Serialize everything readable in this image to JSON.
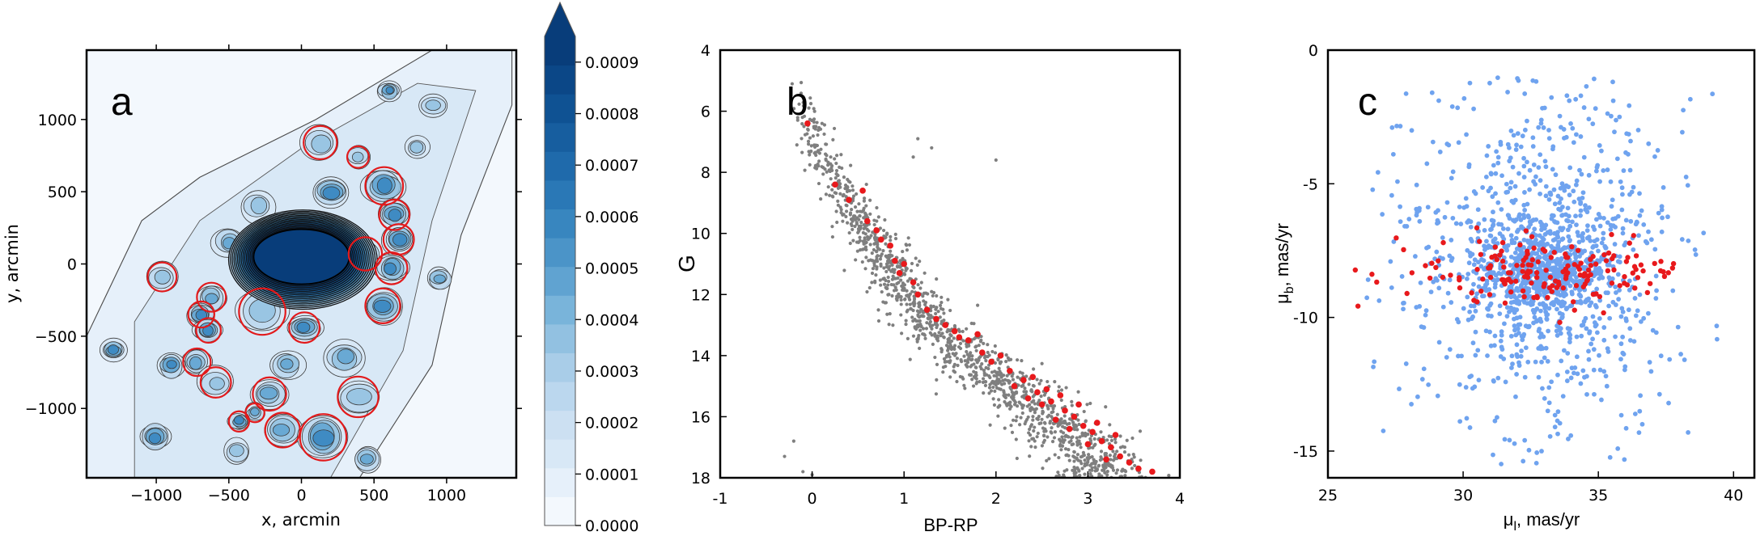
{
  "chart_data": [
    {
      "type": "heatmap",
      "panel_label": "a",
      "xlabel": "x, arcmin",
      "ylabel": "y, arcmin",
      "xticks": [
        -1000,
        -500,
        0,
        500,
        1000
      ],
      "xtick_labels": [
        "−1000",
        "−500",
        "0",
        "500",
        "1000"
      ],
      "yticks": [
        1000,
        500,
        0,
        -500,
        -1000
      ],
      "ytick_labels": [
        "1000",
        "500",
        "0",
        "−500",
        "−1000"
      ],
      "xlim": [
        -1480,
        1480
      ],
      "ylim": [
        -1480,
        1480
      ],
      "colorbar": {
        "ticks": [
          0.0009,
          0.0008,
          0.0007,
          0.0006,
          0.0005,
          0.0004,
          0.0003,
          0.0002,
          0.0001,
          0.0
        ],
        "tick_labels": [
          "0.0009",
          "0.0008",
          "0.0007",
          "0.0006",
          "0.0005",
          "0.0004",
          "0.0003",
          "0.0002",
          "0.0001",
          "0.0000"
        ],
        "range": [
          0.0,
          0.00095
        ],
        "colors_low_to_high": [
          "#f3f8fd",
          "#e6f0fa",
          "#d8e8f6",
          "#cce0f2",
          "#bbd7ee",
          "#a9cde8",
          "#92c1e1",
          "#79b4da",
          "#60a3d1",
          "#4b94c8",
          "#3886bf",
          "#2a78b6",
          "#1f6aab",
          "#175e9f",
          "#0f5293",
          "#0b4787",
          "#083d7a"
        ]
      },
      "central_blob": {
        "x": 0,
        "y": 50,
        "rx": 330,
        "ry": 190
      },
      "circles": [
        {
          "x": 130,
          "y": 840,
          "r": 115
        },
        {
          "x": 390,
          "y": 740,
          "r": 75
        },
        {
          "x": 570,
          "y": 540,
          "r": 130
        },
        {
          "x": 640,
          "y": 340,
          "r": 105
        },
        {
          "x": 670,
          "y": 170,
          "r": 105
        },
        {
          "x": 440,
          "y": 70,
          "r": 115
        },
        {
          "x": 620,
          "y": -30,
          "r": 110
        },
        {
          "x": 560,
          "y": -290,
          "r": 120
        },
        {
          "x": -960,
          "y": -90,
          "r": 100
        },
        {
          "x": -620,
          "y": -230,
          "r": 100
        },
        {
          "x": -690,
          "y": -350,
          "r": 90
        },
        {
          "x": -640,
          "y": -460,
          "r": 85
        },
        {
          "x": -270,
          "y": -330,
          "r": 160
        },
        {
          "x": 20,
          "y": -440,
          "r": 105
        },
        {
          "x": -720,
          "y": -680,
          "r": 95
        },
        {
          "x": -590,
          "y": -820,
          "r": 105
        },
        {
          "x": -220,
          "y": -900,
          "r": 115
        },
        {
          "x": -320,
          "y": -1030,
          "r": 65
        },
        {
          "x": -430,
          "y": -1090,
          "r": 70
        },
        {
          "x": -130,
          "y": -1150,
          "r": 120
        },
        {
          "x": 150,
          "y": -1200,
          "r": 160
        },
        {
          "x": 390,
          "y": -920,
          "r": 140
        }
      ]
    },
    {
      "type": "scatter",
      "panel_label": "b",
      "xlabel": "BP-RP",
      "ylabel": "G",
      "xlim": [
        -1,
        4
      ],
      "ylim": [
        18,
        4
      ],
      "xticks": [
        -1,
        0,
        1,
        2,
        3,
        4
      ],
      "xtick_labels": [
        "-1",
        "0",
        "1",
        "2",
        "3",
        "4"
      ],
      "yticks": [
        4,
        6,
        8,
        10,
        12,
        14,
        16,
        18
      ],
      "ytick_labels": [
        "4",
        "6",
        "8",
        "10",
        "12",
        "14",
        "16",
        "18"
      ],
      "series": [
        {
          "color": "#7f7f7f",
          "description": "field stars along sequence",
          "sequence": [
            [
              -0.1,
              5.0
            ],
            [
              0.0,
              6.0
            ],
            [
              0.2,
              7.5
            ],
            [
              0.5,
              9.0
            ],
            [
              0.8,
              10.5
            ],
            [
              1.1,
              12.0
            ],
            [
              1.5,
              13.3
            ],
            [
              2.0,
              14.5
            ],
            [
              2.5,
              15.7
            ],
            [
              3.0,
              16.9
            ],
            [
              3.3,
              18.0
            ]
          ],
          "count": 1400,
          "outliers": [
            [
              1.15,
              6.9
            ],
            [
              1.3,
              7.2
            ],
            [
              1.1,
              7.5
            ],
            [
              2.0,
              7.6
            ],
            [
              -0.3,
              17.3
            ],
            [
              -0.2,
              16.8
            ],
            [
              -0.1,
              17.8
            ],
            [
              0.0,
              17.9
            ]
          ]
        },
        {
          "color": "#e8191c",
          "description": "cluster members",
          "points": [
            [
              -0.05,
              6.4
            ],
            [
              0.25,
              8.4
            ],
            [
              0.4,
              8.9
            ],
            [
              0.55,
              8.6
            ],
            [
              0.6,
              9.6
            ],
            [
              0.7,
              9.9
            ],
            [
              0.75,
              10.2
            ],
            [
              0.85,
              10.4
            ],
            [
              0.9,
              10.9
            ],
            [
              1.0,
              11.0
            ],
            [
              0.95,
              11.3
            ],
            [
              1.1,
              11.6
            ],
            [
              1.15,
              12.0
            ],
            [
              1.25,
              12.5
            ],
            [
              1.35,
              12.8
            ],
            [
              1.45,
              13.0
            ],
            [
              1.55,
              13.2
            ],
            [
              1.7,
              13.5
            ],
            [
              1.8,
              13.3
            ],
            [
              1.85,
              13.9
            ],
            [
              1.95,
              14.2
            ],
            [
              2.05,
              14.0
            ],
            [
              2.15,
              14.5
            ],
            [
              2.3,
              14.8
            ],
            [
              2.4,
              14.7
            ],
            [
              2.45,
              15.2
            ],
            [
              2.55,
              15.1
            ],
            [
              2.6,
              15.5
            ],
            [
              2.7,
              15.3
            ],
            [
              2.75,
              15.8
            ],
            [
              2.85,
              16.0
            ],
            [
              2.9,
              15.6
            ],
            [
              2.95,
              16.3
            ],
            [
              3.05,
              16.5
            ],
            [
              3.1,
              16.2
            ],
            [
              3.15,
              16.8
            ],
            [
              3.25,
              17.0
            ],
            [
              3.3,
              16.6
            ],
            [
              3.35,
              17.3
            ],
            [
              3.45,
              17.5
            ],
            [
              3.55,
              17.7
            ],
            [
              3.7,
              17.8
            ],
            [
              2.2,
              15.0
            ],
            [
              2.5,
              15.6
            ],
            [
              2.65,
              16.1
            ],
            [
              2.8,
              16.4
            ],
            [
              3.0,
              16.9
            ],
            [
              3.2,
              17.4
            ],
            [
              1.6,
              13.4
            ],
            [
              2.35,
              15.4
            ]
          ]
        }
      ]
    },
    {
      "type": "scatter",
      "panel_label": "c",
      "xlabel_base": "μ",
      "xlabel_sub": "l",
      "xlabel_rest": ", mas/yr",
      "ylabel_base": "μ",
      "ylabel_sub": "b",
      "ylabel_rest": ", mas/yr",
      "xlim": [
        25,
        40.8
      ],
      "ylim": [
        -16,
        0
      ],
      "xticks": [
        25,
        30,
        35,
        40
      ],
      "xtick_labels": [
        "25",
        "30",
        "35",
        "40"
      ],
      "yticks": [
        0,
        -5,
        -10,
        -15
      ],
      "ytick_labels": [
        "0",
        "-5",
        "-10",
        "-15"
      ],
      "series": [
        {
          "color": "#6fa3ef",
          "description": "field stars",
          "center": [
            33.0,
            -8.0
          ],
          "spread": [
            2.6,
            3.2
          ],
          "count": 1500
        },
        {
          "color": "#e8191c",
          "description": "cluster members",
          "center": [
            33.0,
            -8.3
          ],
          "spread": [
            2.8,
            0.55
          ],
          "count": 180
        }
      ]
    }
  ]
}
